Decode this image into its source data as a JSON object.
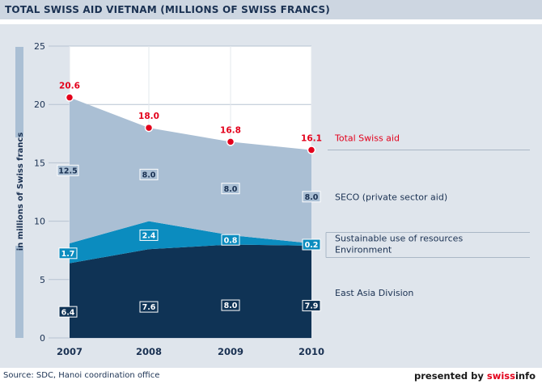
{
  "header": {
    "title": "TOTAL SWISS AID VIETNAM (MILLIONS OF SWISS FRANCS)"
  },
  "footer": {
    "source": "Source: SDC, Hanoi coordination office",
    "presented_by": "presented by",
    "brand_prefix": "swiss",
    "brand_suffix": "info"
  },
  "colors": {
    "total": "#e3001b",
    "seco": "#aabfd4",
    "sustainable": "#0b8cbf",
    "east_asia": "#0f3355",
    "axis_text": "#1a3152",
    "plot_bg": "#ffffff",
    "panel_bg": "#dfe5ec"
  },
  "chart_data": {
    "type": "area",
    "title": "TOTAL SWISS AID VIETNAM (MILLIONS OF SWISS FRANCS)",
    "ylabel": "in millions of Swiss francs",
    "xlabel": "",
    "categories": [
      "2007",
      "2008",
      "2009",
      "2010"
    ],
    "ylim": [
      0,
      25
    ],
    "yticks": [
      "0",
      "5",
      "10",
      "15",
      "20",
      "25"
    ],
    "stacked": true,
    "series": [
      {
        "name": "East Asia Division",
        "values": [
          6.4,
          7.6,
          8.0,
          7.9
        ],
        "labels": [
          "6.4",
          "7.6",
          "8.0",
          "7.9"
        ]
      },
      {
        "name": "Sustainable use of resources",
        "name2": "Environment",
        "values": [
          1.7,
          2.4,
          0.8,
          0.2
        ],
        "labels": [
          "1.7",
          "2.4",
          "0.8",
          "0.2"
        ]
      },
      {
        "name": "SECO (private sector aid)",
        "values": [
          12.5,
          8.0,
          8.0,
          8.0
        ],
        "labels": [
          "12.5",
          "8.0",
          "8.0",
          "8.0"
        ]
      }
    ],
    "total": {
      "name": "Total Swiss aid",
      "values": [
        20.6,
        18.0,
        16.8,
        16.1
      ],
      "labels": [
        "20.6",
        "18.0",
        "16.8",
        "16.1"
      ]
    }
  }
}
